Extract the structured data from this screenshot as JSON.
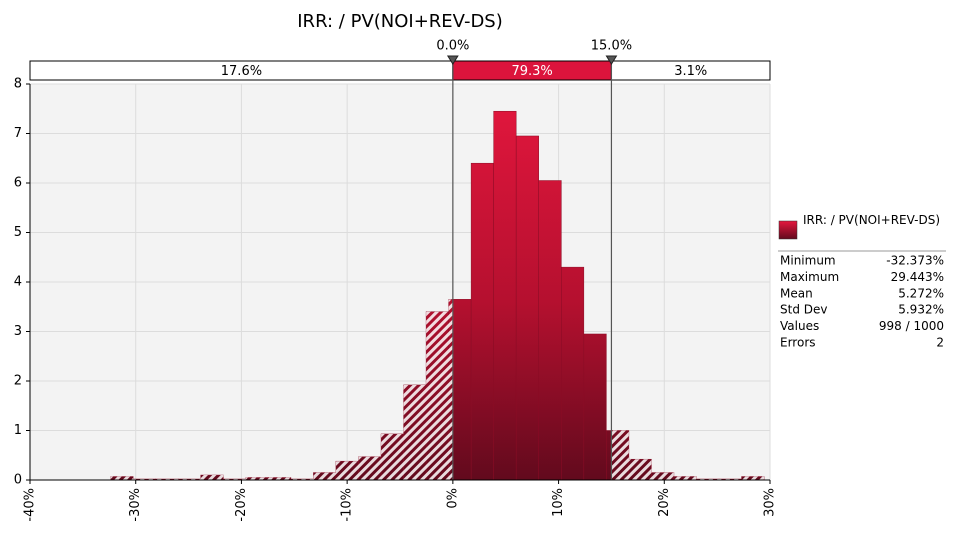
{
  "chart_data": {
    "type": "histogram",
    "title": "IRR: / PV(NOI+REV-DS)",
    "series_name": "IRR: / PV(NOI+REV-DS)",
    "color": "#c8143a",
    "bins": [
      -32.37,
      -30.24,
      -28.11,
      -25.98,
      -23.85,
      -21.71,
      -19.58,
      -17.45,
      -15.32,
      -13.19,
      -11.06,
      -8.93,
      -6.79,
      -4.66,
      -2.53,
      -0.4,
      1.73,
      3.86,
      5.99,
      8.12,
      10.26,
      12.39,
      14.52,
      16.65,
      18.78,
      20.91,
      23.04,
      25.18,
      27.31,
      29.44
    ],
    "values": [
      0.07,
      0.02,
      0.02,
      0.02,
      0.1,
      0.02,
      0.05,
      0.05,
      0.02,
      0.15,
      0.38,
      0.47,
      0.93,
      1.92,
      3.4,
      3.65,
      6.4,
      7.45,
      6.95,
      6.05,
      4.3,
      2.95,
      1.0,
      0.42,
      0.15,
      0.07,
      0.02,
      0.02,
      0.07
    ],
    "xlim": [
      -40,
      30
    ],
    "ylim": [
      0,
      8
    ],
    "xticks": [
      {
        "value": -40,
        "label": "-40%"
      },
      {
        "value": -30,
        "label": "-30%"
      },
      {
        "value": -20,
        "label": "-20%"
      },
      {
        "value": -10,
        "label": "-10%"
      },
      {
        "value": 0,
        "label": "0%"
      },
      {
        "value": 10,
        "label": "10%"
      },
      {
        "value": 20,
        "label": "20%"
      },
      {
        "value": 30,
        "label": "30%"
      }
    ],
    "yticks": [
      0,
      1,
      2,
      3,
      4,
      5,
      6,
      7,
      8
    ],
    "grid": true,
    "delimiters": [
      {
        "value": 0,
        "label": "0.0%"
      },
      {
        "value": 15,
        "label": "15.0%"
      }
    ],
    "regions": [
      "17.6%",
      "79.3%",
      "3.1%"
    ],
    "stats": [
      [
        "Minimum",
        "-32.373%"
      ],
      [
        "Maximum",
        "29.443%"
      ],
      [
        "Mean",
        "5.272%"
      ],
      [
        "Std Dev",
        "5.932%"
      ],
      [
        "Values",
        "998 / 1000"
      ],
      [
        "Errors",
        "2"
      ]
    ]
  }
}
